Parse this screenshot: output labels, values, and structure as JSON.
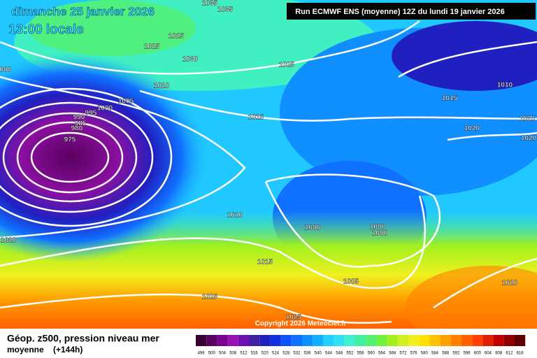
{
  "header": {
    "date": "dimanche 25 janvier 2026",
    "time": "13:00 locale",
    "run": "Run ECMWF ENS (moyenne) 12Z du lundi 19 janvier 2026"
  },
  "isobar_labels": [
    "1035",
    "1035",
    "1025",
    "1025",
    "1030",
    "1025",
    "1020",
    "1005",
    "1000",
    "995",
    "990",
    "985",
    "980",
    "975",
    "1015",
    "1010",
    "1015",
    "1025",
    "1025",
    "1000",
    "1000",
    "1000",
    "1005",
    "1015",
    "1010",
    "1020",
    "1020",
    "1020",
    "1020",
    "1020",
    "1000"
  ],
  "copyright": "Copyright 2026 Meteociel.fr",
  "footer": {
    "title": "Géop. z500, pression niveau mer",
    "subtitle": "moyenne",
    "lead": "(+144h)"
  },
  "scale": {
    "values": [
      496,
      500,
      504,
      508,
      512,
      516,
      520,
      524,
      528,
      532,
      536,
      540,
      544,
      548,
      552,
      556,
      560,
      564,
      568,
      572,
      576,
      580,
      584,
      588,
      592,
      596,
      600,
      604,
      608,
      612,
      616
    ],
    "colors": [
      "#3a0030",
      "#5a0060",
      "#7a0090",
      "#9a10b0",
      "#7010b0",
      "#4020a0",
      "#2020c0",
      "#1030e0",
      "#1050ff",
      "#1070ff",
      "#1090ff",
      "#10b0ff",
      "#20d0ff",
      "#30e0f0",
      "#40f0d0",
      "#40f0a0",
      "#50f070",
      "#70f040",
      "#a0f020",
      "#d0f020",
      "#f0f020",
      "#ffe000",
      "#ffc000",
      "#ffa000",
      "#ff8000",
      "#ff6000",
      "#ff4000",
      "#e02000",
      "#c00000",
      "#900000",
      "#600000"
    ]
  }
}
